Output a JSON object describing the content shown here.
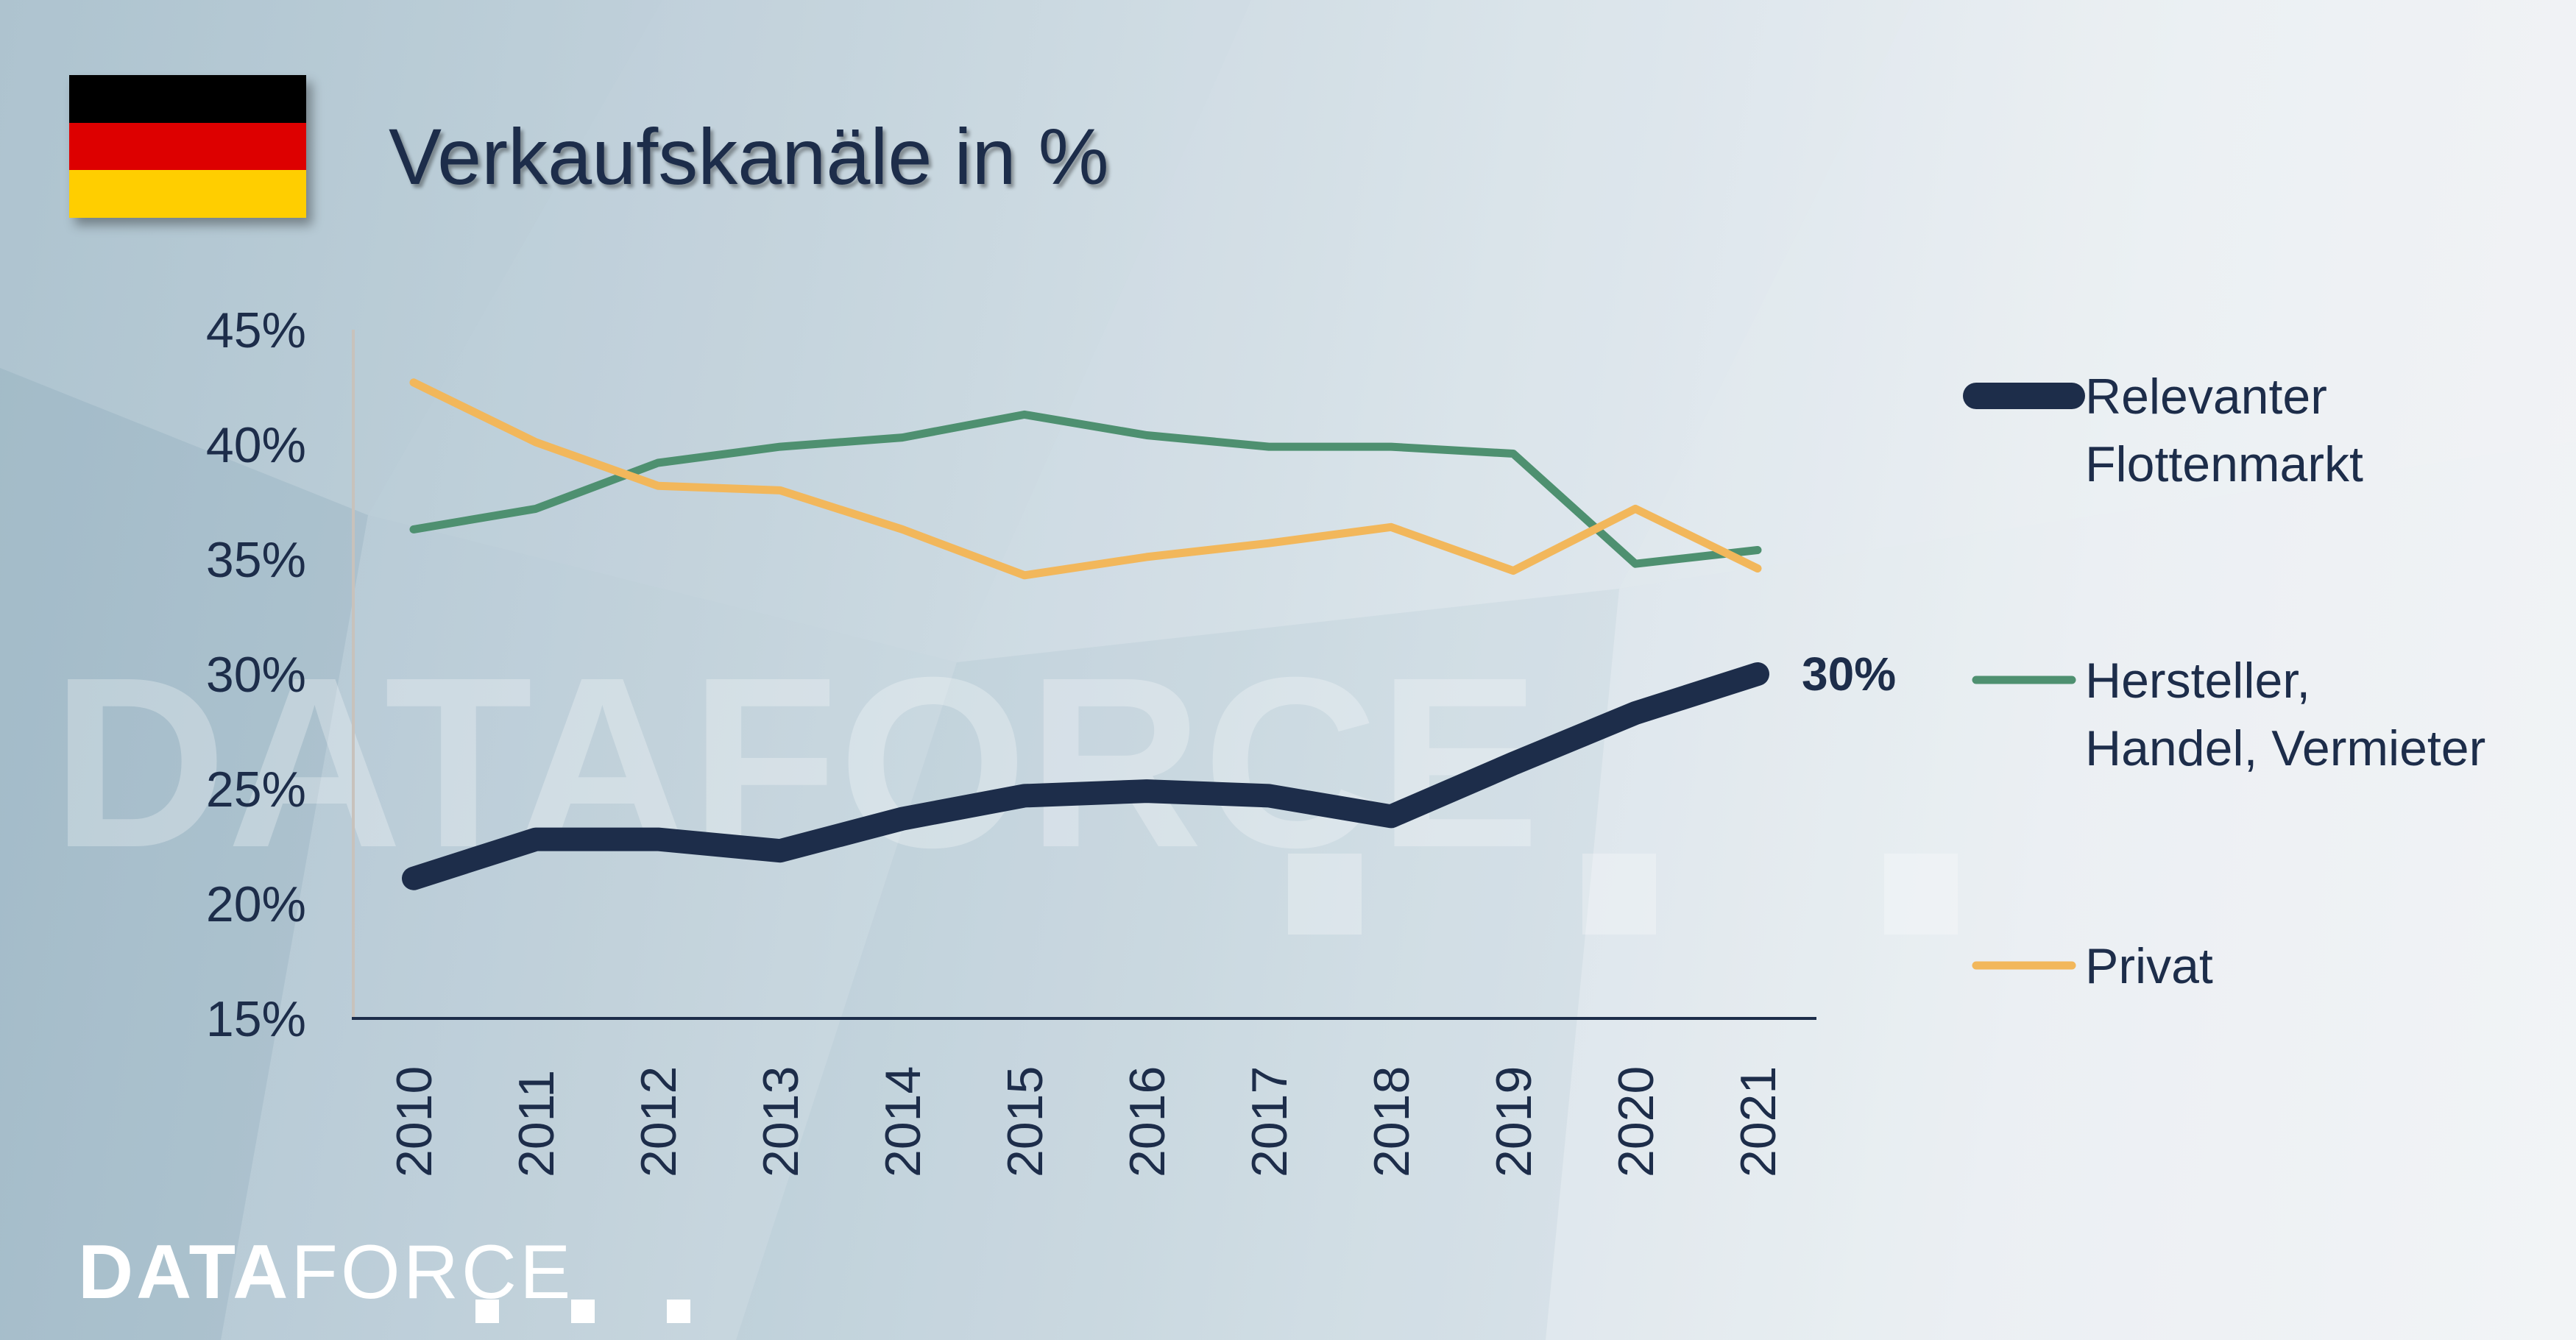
{
  "title": "Verkaufskanäle in %",
  "flag": {
    "colors": [
      "#000000",
      "#dd0000",
      "#ffce00"
    ]
  },
  "watermark": "DATAFORCE",
  "logo": {
    "bold": "DATA",
    "light": "FORCE"
  },
  "chart_data": {
    "type": "line",
    "title": "Verkaufskanäle in %",
    "categories": [
      "2010",
      "2011",
      "2012",
      "2013",
      "2014",
      "2015",
      "2016",
      "2017",
      "2018",
      "2019",
      "2020",
      "2021"
    ],
    "yticks": [
      "45%",
      "40%",
      "35%",
      "30%",
      "25%",
      "20%",
      "15%"
    ],
    "ylim": [
      15,
      45
    ],
    "grid": false,
    "legend_position": "right",
    "series": [
      {
        "name": "Relevanter Flottenmarkt",
        "label_lines": [
          "Relevanter",
          "Flottenmarkt"
        ],
        "color": "#1d2d4a",
        "emphasis": "thick",
        "values": [
          21.1,
          22.8,
          22.8,
          22.3,
          23.7,
          24.7,
          24.9,
          24.7,
          23.8,
          26.1,
          28.3,
          30.0
        ],
        "end_label": "30%"
      },
      {
        "name": "Hersteller, Handel, Vermieter",
        "label_lines": [
          "Hersteller,",
          "Handel, Vermieter"
        ],
        "color": "#4e9070",
        "values": [
          36.3,
          37.2,
          39.2,
          39.9,
          40.3,
          41.3,
          40.4,
          39.9,
          39.9,
          39.6,
          34.8,
          35.4
        ]
      },
      {
        "name": "Privat",
        "label_lines": [
          "Privat"
        ],
        "color": "#f2b75b",
        "values": [
          42.7,
          40.1,
          38.2,
          38.0,
          36.3,
          34.3,
          35.1,
          35.7,
          36.4,
          34.5,
          37.2,
          34.6
        ]
      }
    ]
  }
}
